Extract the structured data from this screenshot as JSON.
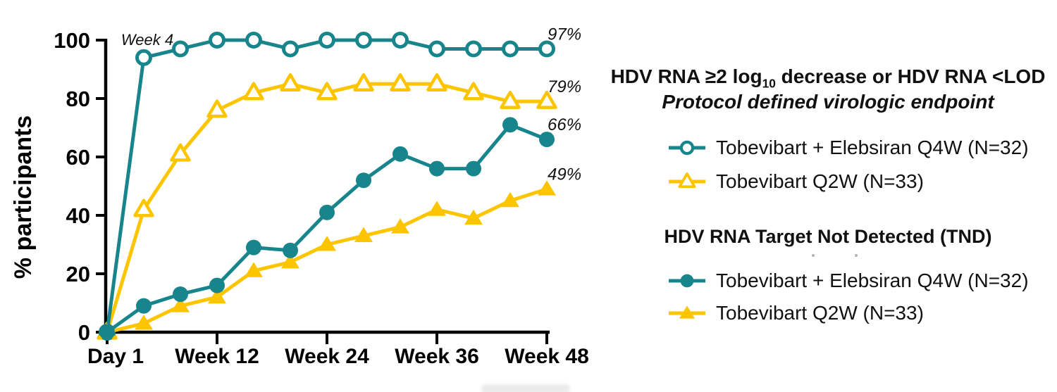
{
  "chart_data": {
    "type": "line",
    "ylabel": "% participants",
    "ylim": [
      0,
      100
    ],
    "y_ticks": [
      0,
      20,
      40,
      60,
      80,
      100
    ],
    "x_tick_weeks": [
      0,
      12,
      24,
      36,
      48
    ],
    "x_tick_labels": [
      "Day 1",
      "Week 12",
      "Week 24",
      "Week 36",
      "Week 48"
    ],
    "x_weeks": [
      0,
      4,
      8,
      12,
      16,
      20,
      24,
      28,
      32,
      36,
      40,
      44,
      48
    ],
    "annotation": "Week 4",
    "grid": false,
    "legend_position": "right",
    "series": [
      {
        "id": "pdve-combo",
        "group": "HDV RNA ≥2 log10 decrease or HDV RNA <LOD",
        "name": "Tobevibart + Elebsiran Q4W (N=32)",
        "marker": "open-circle",
        "color": "#17858B",
        "values": [
          0,
          94,
          97,
          100,
          100,
          97,
          100,
          100,
          100,
          97,
          97,
          97,
          97
        ],
        "end_label": "97%"
      },
      {
        "id": "pdve-mono",
        "group": "HDV RNA ≥2 log10 decrease or HDV RNA <LOD",
        "name": "Tobevibart Q2W (N=33)",
        "marker": "open-triangle",
        "color": "#FDC500",
        "values": [
          0,
          42,
          61,
          76,
          82,
          85,
          82,
          85,
          85,
          85,
          82,
          79,
          79
        ],
        "end_label": "79%"
      },
      {
        "id": "tnd-combo",
        "group": "HDV RNA Target Not Detected (TND)",
        "name": "Tobevibart + Elebsiran Q4W (N=32)",
        "marker": "filled-circle",
        "color": "#17858B",
        "values": [
          0,
          9,
          13,
          16,
          29,
          28,
          41,
          52,
          61,
          56,
          56,
          71,
          66
        ],
        "end_label": "66%"
      },
      {
        "id": "tnd-mono",
        "group": "HDV RNA Target Not Detected (TND)",
        "name": "Tobevibart Q2W (N=33)",
        "marker": "filled-triangle",
        "color": "#FDC500",
        "values": [
          0,
          3,
          9,
          12,
          21,
          24,
          30,
          33,
          36,
          42,
          39,
          45,
          49
        ],
        "end_label": "49%"
      }
    ]
  },
  "legend": {
    "group1": {
      "title_prefix": "HDV RNA ≥2 log",
      "title_sub": "10",
      "title_suffix": " decrease or HDV RNA <LOD",
      "subtitle": "Protocol defined virologic endpoint",
      "items": [
        {
          "label": "Tobevibart + Elebsiran Q4W (N=32)",
          "marker": "open-circle",
          "color": "#17858B"
        },
        {
          "label": "Tobevibart Q2W (N=33)",
          "marker": "open-triangle",
          "color": "#FDC500"
        }
      ]
    },
    "group2": {
      "title": "HDV RNA Target Not Detected (TND)",
      "items": [
        {
          "label": "Tobevibart + Elebsiran Q4W (N=32)",
          "marker": "filled-circle",
          "color": "#17858B"
        },
        {
          "label": "Tobevibart Q2W (N=33)",
          "marker": "filled-triangle",
          "color": "#FDC500"
        }
      ]
    }
  },
  "colors": {
    "teal": "#17858B",
    "yellow": "#FDC500",
    "axis": "#000000"
  }
}
